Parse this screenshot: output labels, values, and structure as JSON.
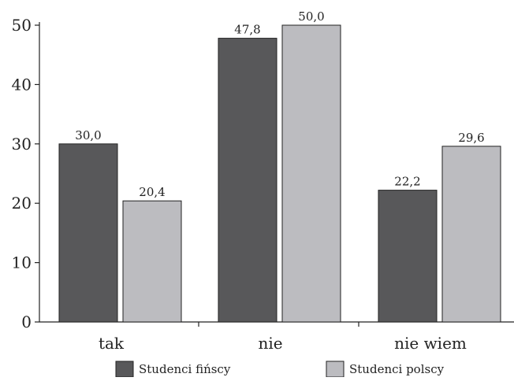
{
  "chart_data": {
    "type": "bar",
    "categories": [
      "tak",
      "nie",
      "nie wiem"
    ],
    "series": [
      {
        "name": "Studenci fińscy",
        "values": [
          30.0,
          47.8,
          22.2
        ],
        "labels": [
          "30,0",
          "47,8",
          "22,2"
        ],
        "color": "#58585a"
      },
      {
        "name": "Studenci polscy",
        "values": [
          20.4,
          50.0,
          29.6
        ],
        "labels": [
          "20,4",
          "50,0",
          "29,6"
        ],
        "color": "#bcbcc0"
      }
    ],
    "y_ticks": [
      0,
      10,
      20,
      30,
      40,
      50
    ],
    "ylim": [
      0,
      50
    ],
    "title": "",
    "xlabel": "",
    "ylabel": "",
    "grid": false,
    "legend_position": "bottom",
    "bar_outline_color": "#222222"
  }
}
